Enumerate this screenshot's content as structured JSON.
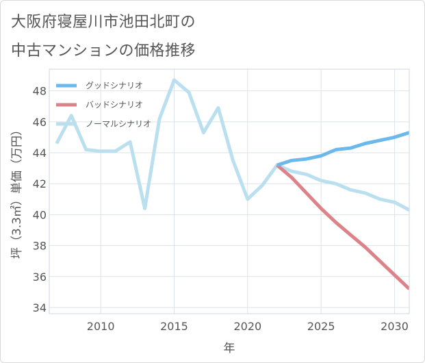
{
  "title_lines": [
    "大阪府寝屋川市池田北町の",
    "中古マンションの価格推移"
  ],
  "chart_data": {
    "type": "line",
    "title": "大阪府寝屋川市池田北町の中古マンションの価格推移",
    "xlabel": "年",
    "ylabel": "坪（3.3㎡）単価（万円）",
    "xlim": [
      2006.5,
      2031
    ],
    "ylim": [
      33.6,
      49.4
    ],
    "xticks": [
      2010,
      2015,
      2020,
      2025,
      2030
    ],
    "yticks": [
      34,
      36,
      38,
      40,
      42,
      44,
      46,
      48
    ],
    "grid": true,
    "legend_position": "top-left",
    "series": [
      {
        "name": "グッドシナリオ",
        "color": "#6bb8ec",
        "x": [
          2022,
          2023,
          2024,
          2025,
          2026,
          2027,
          2028,
          2029,
          2030,
          2031
        ],
        "values": [
          43.2,
          43.5,
          43.6,
          43.8,
          44.2,
          44.3,
          44.6,
          44.8,
          45.0,
          45.3
        ]
      },
      {
        "name": "バッドシナリオ",
        "color": "#dc8288",
        "x": [
          2022,
          2023,
          2024,
          2025,
          2026,
          2027,
          2028,
          2029,
          2030,
          2031
        ],
        "values": [
          43.2,
          42.4,
          41.4,
          40.4,
          39.5,
          38.7,
          37.9,
          37.0,
          36.1,
          35.2
        ]
      },
      {
        "name": "ノーマルシナリオ",
        "color": "#badfee",
        "x": [
          2007,
          2008,
          2009,
          2010,
          2011,
          2012,
          2013,
          2014,
          2015,
          2016,
          2017,
          2018,
          2019,
          2020,
          2021,
          2022,
          2023,
          2024,
          2025,
          2026,
          2027,
          2028,
          2029,
          2030,
          2031
        ],
        "values": [
          44.6,
          46.4,
          44.2,
          44.1,
          44.1,
          44.7,
          40.4,
          46.2,
          48.7,
          47.9,
          45.3,
          46.9,
          43.5,
          41.0,
          41.9,
          43.2,
          42.8,
          42.6,
          42.2,
          42.0,
          41.6,
          41.4,
          41.0,
          40.8,
          40.3
        ]
      }
    ]
  }
}
